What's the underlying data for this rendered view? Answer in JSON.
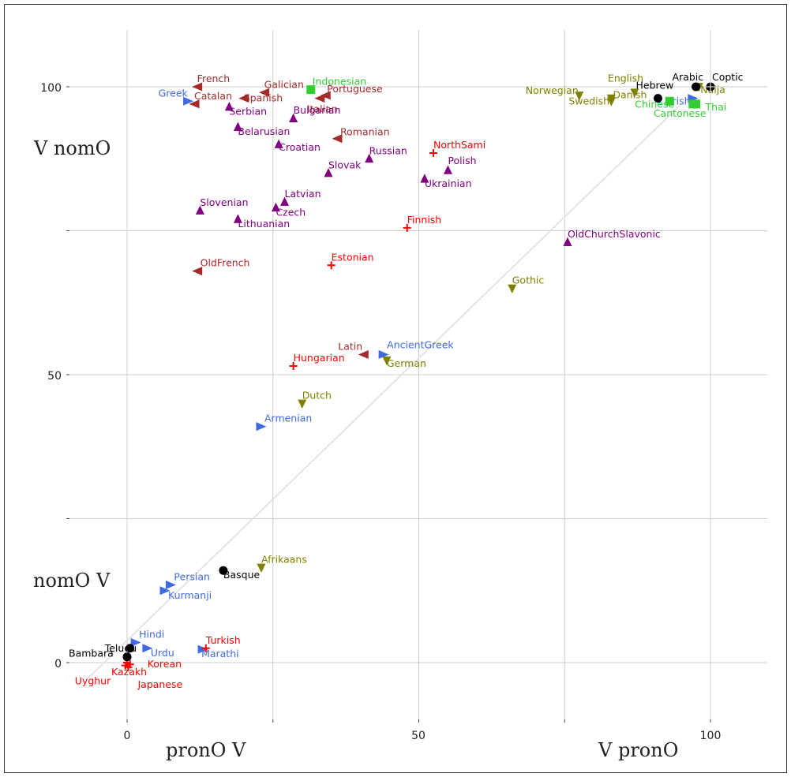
{
  "colors": {
    "Romance": "#a52a2a",
    "Slavic": "#800080",
    "Germanic": "#808000",
    "IndoIranianHellenicArmenian": "#4169e1",
    "UralicTurkicJapaneseKorean": "#ff0000",
    "SinoTaiIndonesian": "#32cd32",
    "Isolates": "#000000"
  },
  "chart_data": {
    "type": "scatter",
    "xlim": [
      -12,
      110
    ],
    "ylim": [
      -10,
      113
    ],
    "grid": true,
    "x_ticks": [
      "0",
      "50",
      "100"
    ],
    "y_ticks": [
      "0",
      "50",
      "100"
    ],
    "corner_labels": {
      "top_left": "V nomO",
      "bottom_left": "nomO V",
      "bottom_mid_left": "pronO V",
      "bottom_right": "V pronO"
    },
    "diagonal": [
      [
        -7,
        -3
      ],
      [
        95,
        97
      ]
    ],
    "points": [
      {
        "name": "French",
        "x": 12,
        "y": 100,
        "group": "Romance",
        "marker": "tri-left"
      },
      {
        "name": "Catalan",
        "x": 11.5,
        "y": 97,
        "group": "Romance",
        "marker": "tri-left"
      },
      {
        "name": "Galician",
        "x": 23.5,
        "y": 99,
        "group": "Romance",
        "marker": "tri-left"
      },
      {
        "name": "Spanish",
        "x": 20,
        "y": 98,
        "group": "Romance",
        "marker": "tri-left"
      },
      {
        "name": "Italian",
        "x": 33,
        "y": 98,
        "group": "Romance",
        "marker": "tri-left"
      },
      {
        "name": "Portuguese",
        "x": 34,
        "y": 98.5,
        "group": "Romance",
        "marker": "tri-left"
      },
      {
        "name": "Romanian",
        "x": 36,
        "y": 91,
        "group": "Romance",
        "marker": "tri-left"
      },
      {
        "name": "OldFrench",
        "x": 12,
        "y": 68,
        "group": "Romance",
        "marker": "tri-left"
      },
      {
        "name": "Latin",
        "x": 40.5,
        "y": 53.5,
        "group": "Romance",
        "marker": "tri-left"
      },
      {
        "name": "Greek",
        "x": 10.5,
        "y": 97.5,
        "group": "IndoIranianHellenicArmenian",
        "marker": "tri-right"
      },
      {
        "name": "AncientGreek",
        "x": 44,
        "y": 53.5,
        "group": "IndoIranianHellenicArmenian",
        "marker": "tri-right"
      },
      {
        "name": "Armenian",
        "x": 23,
        "y": 41,
        "group": "IndoIranianHellenicArmenian",
        "marker": "tri-right"
      },
      {
        "name": "Persian",
        "x": 7.5,
        "y": 13.5,
        "group": "IndoIranianHellenicArmenian",
        "marker": "tri-right"
      },
      {
        "name": "Kurmanji",
        "x": 6.5,
        "y": 12.5,
        "group": "IndoIranianHellenicArmenian",
        "marker": "tri-right"
      },
      {
        "name": "Hindi",
        "x": 1.5,
        "y": 3.5,
        "group": "IndoIranianHellenicArmenian",
        "marker": "tri-right"
      },
      {
        "name": "Urdu",
        "x": 3.5,
        "y": 2.5,
        "group": "IndoIranianHellenicArmenian",
        "marker": "tri-right"
      },
      {
        "name": "Marathi",
        "x": 13,
        "y": 2.3,
        "group": "IndoIranianHellenicArmenian",
        "marker": "tri-right"
      },
      {
        "name": "Irish",
        "x": 97,
        "y": 98,
        "group": "IndoIranianHellenicArmenian",
        "marker": "tri-right"
      },
      {
        "name": "Serbian",
        "x": 17.5,
        "y": 96.5,
        "group": "Slavic",
        "marker": "tri-up"
      },
      {
        "name": "Bulgarian",
        "x": 28.5,
        "y": 94.5,
        "group": "Slavic",
        "marker": "tri-up"
      },
      {
        "name": "Belarusian",
        "x": 19,
        "y": 93,
        "group": "Slavic",
        "marker": "tri-up"
      },
      {
        "name": "Croatian",
        "x": 26,
        "y": 90,
        "group": "Slavic",
        "marker": "tri-up"
      },
      {
        "name": "Russian",
        "x": 41.5,
        "y": 87.5,
        "group": "Slavic",
        "marker": "tri-up"
      },
      {
        "name": "Slovak",
        "x": 34.5,
        "y": 85,
        "group": "Slavic",
        "marker": "tri-up"
      },
      {
        "name": "Ukrainian",
        "x": 51,
        "y": 84,
        "group": "Slavic",
        "marker": "tri-up"
      },
      {
        "name": "Polish",
        "x": 55,
        "y": 85.5,
        "group": "Slavic",
        "marker": "tri-up"
      },
      {
        "name": "Slovenian",
        "x": 12.5,
        "y": 78.5,
        "group": "Slavic",
        "marker": "tri-up"
      },
      {
        "name": "Latvian",
        "x": 27,
        "y": 80,
        "group": "Slavic",
        "marker": "tri-up"
      },
      {
        "name": "Czech",
        "x": 25.5,
        "y": 79,
        "group": "Slavic",
        "marker": "tri-up"
      },
      {
        "name": "Lithuanian",
        "x": 19,
        "y": 77,
        "group": "Slavic",
        "marker": "tri-up"
      },
      {
        "name": "OldChurchSlavonic",
        "x": 75.5,
        "y": 73,
        "group": "Slavic",
        "marker": "tri-up"
      },
      {
        "name": "English",
        "x": 87,
        "y": 99,
        "group": "Germanic",
        "marker": "tri-down"
      },
      {
        "name": "Norwegian",
        "x": 77.5,
        "y": 98.5,
        "group": "Germanic",
        "marker": "tri-down"
      },
      {
        "name": "Danish",
        "x": 83,
        "y": 98,
        "group": "Germanic",
        "marker": "tri-down"
      },
      {
        "name": "Swedish",
        "x": 83,
        "y": 97.5,
        "group": "Germanic",
        "marker": "tri-down"
      },
      {
        "name": "Naija",
        "x": 98,
        "y": 100,
        "group": "Germanic",
        "marker": "tri-down"
      },
      {
        "name": "Gothic",
        "x": 66,
        "y": 65,
        "group": "Germanic",
        "marker": "tri-down"
      },
      {
        "name": "German",
        "x": 44.5,
        "y": 52.5,
        "group": "Germanic",
        "marker": "tri-down"
      },
      {
        "name": "Dutch",
        "x": 30,
        "y": 45,
        "group": "Germanic",
        "marker": "tri-down"
      },
      {
        "name": "Afrikaans",
        "x": 23,
        "y": 16.5,
        "group": "Germanic",
        "marker": "tri-down"
      },
      {
        "name": "NorthSami",
        "x": 52.5,
        "y": 88.5,
        "group": "UralicTurkicJapaneseKorean",
        "marker": "plus"
      },
      {
        "name": "Finnish",
        "x": 48,
        "y": 75.5,
        "group": "UralicTurkicJapaneseKorean",
        "marker": "plus"
      },
      {
        "name": "Estonian",
        "x": 35,
        "y": 69,
        "group": "UralicTurkicJapaneseKorean",
        "marker": "plus"
      },
      {
        "name": "Hungarian",
        "x": 28.5,
        "y": 51.5,
        "group": "UralicTurkicJapaneseKorean",
        "marker": "plus"
      },
      {
        "name": "Turkish",
        "x": 13.5,
        "y": 2.5,
        "group": "UralicTurkicJapaneseKorean",
        "marker": "plus"
      },
      {
        "name": "Kazakh",
        "x": 0,
        "y": 0,
        "group": "UralicTurkicJapaneseKorean",
        "marker": "plus"
      },
      {
        "name": "Korean",
        "x": 0.5,
        "y": -0.3,
        "group": "UralicTurkicJapaneseKorean",
        "marker": "plus"
      },
      {
        "name": "Uyghur",
        "x": -0.3,
        "y": -0.5,
        "group": "UralicTurkicJapaneseKorean",
        "marker": "plus"
      },
      {
        "name": "Japanese",
        "x": 0.2,
        "y": -0.8,
        "group": "UralicTurkicJapaneseKorean",
        "marker": "plus"
      },
      {
        "name": "Indonesian",
        "x": 31.5,
        "y": 99.5,
        "group": "SinoTaiIndonesian",
        "marker": "square"
      },
      {
        "name": "Chinese",
        "x": 93,
        "y": 97.5,
        "group": "SinoTaiIndonesian",
        "marker": "square"
      },
      {
        "name": "Cantonese",
        "x": 97,
        "y": 97,
        "group": "SinoTaiIndonesian",
        "marker": "square"
      },
      {
        "name": "Thai",
        "x": 97.5,
        "y": 97,
        "group": "SinoTaiIndonesian",
        "marker": "square"
      },
      {
        "name": "Arabic",
        "x": 97.5,
        "y": 100,
        "group": "Isolates",
        "marker": "circle"
      },
      {
        "name": "Coptic",
        "x": 100,
        "y": 100,
        "group": "Isolates",
        "marker": "circle-cross"
      },
      {
        "name": "Hebrew",
        "x": 91,
        "y": 98,
        "group": "Isolates",
        "marker": "circle"
      },
      {
        "name": "Basque",
        "x": 16.5,
        "y": 16,
        "group": "Isolates",
        "marker": "circle"
      },
      {
        "name": "Bambara",
        "x": 0,
        "y": 1,
        "group": "Isolates",
        "marker": "circle"
      },
      {
        "name": "Telugu",
        "x": 0.5,
        "y": 2.5,
        "group": "Isolates",
        "marker": "circle"
      }
    ]
  }
}
